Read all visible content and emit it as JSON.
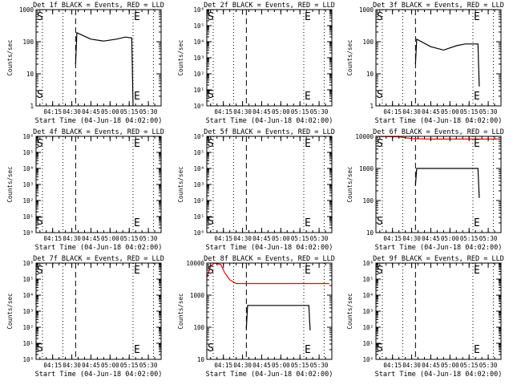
{
  "x_ticks": [
    "04:15",
    "04:30",
    "04:45",
    "05:00",
    "05:15",
    "05:30"
  ],
  "chart_data": [
    {
      "type": "line",
      "title": "Det 1f BLACK = Events, RED = LLD",
      "xlabel": "Start Time (04-Jun-18 04:02:00)",
      "ylabel": "Counts/sec",
      "yscale": "log",
      "ylim": [
        1,
        1000
      ],
      "ytick_labels": [
        "1",
        "10",
        "100",
        "1000"
      ],
      "dotted_x": [
        "04:07",
        "04:23",
        "05:18",
        "05:34"
      ],
      "dashed_x": [
        "04:33"
      ],
      "markers": [
        {
          "text": "S",
          "x": "04:02"
        },
        {
          "text": "E",
          "x": "05:18"
        }
      ],
      "series": [
        {
          "color": "#000000",
          "points": [
            [
              "04:33",
              20
            ],
            [
              "04:34",
              190
            ],
            [
              "04:45",
              120
            ],
            [
              "04:55",
              105
            ],
            [
              "05:05",
              120
            ],
            [
              "05:12",
              140
            ],
            [
              "05:17",
              130
            ],
            [
              "05:18",
              1
            ]
          ]
        }
      ]
    },
    {
      "type": "line",
      "title": "Det 2f BLACK = Events, RED = LLD",
      "xlabel": "Start Time (04-Jun-18 04:02:00)",
      "ylabel": "Counts/sec",
      "yscale": "log",
      "ylim": [
        1,
        1000000
      ],
      "ytick_labels": [
        "10⁰",
        "10¹",
        "10²",
        "10³",
        "10⁴",
        "10⁵",
        "10⁶"
      ],
      "dotted_x": [
        "04:07",
        "04:23",
        "05:18",
        "05:34"
      ],
      "dashed_x": [
        "04:33"
      ],
      "markers": [
        {
          "text": "S",
          "x": "04:02"
        },
        {
          "text": "E",
          "x": "05:18"
        }
      ],
      "series": []
    },
    {
      "type": "line",
      "title": "Det 3f BLACK = Events, RED = LLD",
      "xlabel": "Start Time (04-Jun-18 04:02:00)",
      "ylabel": "Counts/sec",
      "yscale": "log",
      "ylim": [
        1,
        1000
      ],
      "ytick_labels": [
        "1",
        "10",
        "100",
        "1000"
      ],
      "dotted_x": [
        "04:07",
        "04:23",
        "05:18",
        "05:34"
      ],
      "dashed_x": [
        "04:33"
      ],
      "markers": [
        {
          "text": "S",
          "x": "04:02"
        },
        {
          "text": "E",
          "x": "05:18"
        }
      ],
      "series": [
        {
          "color": "#000000",
          "points": [
            [
              "04:33",
              20
            ],
            [
              "04:34",
              120
            ],
            [
              "04:45",
              70
            ],
            [
              "04:55",
              55
            ],
            [
              "05:05",
              75
            ],
            [
              "05:12",
              85
            ],
            [
              "05:22",
              85
            ],
            [
              "05:23",
              4
            ]
          ]
        }
      ]
    },
    {
      "type": "line",
      "title": "Det 4f BLACK = Events, RED = LLD",
      "xlabel": "Start Time (04-Jun-18 04:02:00)",
      "ylabel": "Counts/sec",
      "yscale": "log",
      "ylim": [
        1,
        1000000
      ],
      "ytick_labels": [
        "10⁰",
        "10¹",
        "10²",
        "10³",
        "10⁴",
        "10⁵",
        "10⁶"
      ],
      "dotted_x": [
        "04:07",
        "04:23",
        "05:18",
        "05:34"
      ],
      "dashed_x": [
        "04:33"
      ],
      "markers": [
        {
          "text": "S",
          "x": "04:02"
        },
        {
          "text": "E",
          "x": "05:18"
        }
      ],
      "series": []
    },
    {
      "type": "line",
      "title": "Det 5f BLACK = Events, RED = LLD",
      "xlabel": "Start Time (04-Jun-18 04:02:00)",
      "ylabel": "Counts/sec",
      "yscale": "log",
      "ylim": [
        1,
        1000000
      ],
      "ytick_labels": [
        "10⁰",
        "10¹",
        "10²",
        "10³",
        "10⁴",
        "10⁵",
        "10⁶"
      ],
      "dotted_x": [
        "04:07",
        "04:23",
        "05:18",
        "05:34"
      ],
      "dashed_x": [
        "04:33"
      ],
      "markers": [
        {
          "text": "S",
          "x": "04:02"
        },
        {
          "text": "E",
          "x": "05:18"
        }
      ],
      "series": []
    },
    {
      "type": "line",
      "title": "Det 6f BLACK = Events, RED = LLD",
      "xlabel": "Start Time (04-Jun-18 04:02:00)",
      "ylabel": "Counts/sec",
      "yscale": "log",
      "ylim": [
        10,
        10000
      ],
      "ytick_labels": [
        "10",
        "100",
        "1000",
        "10000"
      ],
      "dotted_x": [
        "04:07",
        "04:23",
        "05:18",
        "05:34"
      ],
      "dashed_x": [
        "04:33"
      ],
      "markers": [
        {
          "text": "S",
          "x": "04:02"
        },
        {
          "text": "E",
          "x": "05:18"
        }
      ],
      "series": [
        {
          "color": "#ff0000",
          "points": [
            [
              "04:02",
              10000
            ],
            [
              "04:20",
              9600
            ],
            [
              "04:30",
              8500
            ],
            [
              "04:45",
              8200
            ],
            [
              "05:10",
              8200
            ],
            [
              "05:38",
              8200
            ]
          ]
        },
        {
          "color": "#000000",
          "points": [
            [
              "04:33",
              300
            ],
            [
              "04:34",
              1000
            ],
            [
              "05:00",
              1000
            ],
            [
              "05:22",
              1000
            ],
            [
              "05:23",
              120
            ]
          ]
        }
      ]
    },
    {
      "type": "line",
      "title": "Det 7f BLACK = Events, RED = LLD",
      "xlabel": "Start Time (04-Jun-18 04:02:00)",
      "ylabel": "Counts/sec",
      "yscale": "log",
      "ylim": [
        1,
        1000000
      ],
      "ytick_labels": [
        "10⁰",
        "10¹",
        "10²",
        "10³",
        "10⁴",
        "10⁵",
        "10⁶"
      ],
      "dotted_x": [
        "04:07",
        "04:23",
        "05:18",
        "05:34"
      ],
      "dashed_x": [
        "04:33"
      ],
      "markers": [
        {
          "text": "S",
          "x": "04:02"
        },
        {
          "text": "E",
          "x": "05:18"
        }
      ],
      "series": []
    },
    {
      "type": "line",
      "title": "Det 8f BLACK = Events, RED = LLD",
      "xlabel": "Start Time (04-Jun-18 04:02:00)",
      "ylabel": "Counts/sec",
      "yscale": "log",
      "ylim": [
        10,
        10000
      ],
      "ytick_labels": [
        "10",
        "100",
        "1000",
        "10000"
      ],
      "dotted_x": [
        "04:07",
        "04:23",
        "05:18",
        "05:34"
      ],
      "dashed_x": [
        "04:33"
      ],
      "markers": [
        {
          "text": "S",
          "x": "04:02"
        },
        {
          "text": "E",
          "x": "05:18"
        }
      ],
      "series": [
        {
          "color": "#ff0000",
          "points": [
            [
              "04:02",
              3500
            ],
            [
              "04:05",
              8000
            ],
            [
              "04:08",
              10000
            ],
            [
              "04:13",
              9000
            ],
            [
              "04:16",
              5000
            ],
            [
              "04:20",
              3000
            ],
            [
              "04:25",
              2300
            ],
            [
              "04:40",
              2300
            ],
            [
              "05:38",
              2300
            ]
          ]
        },
        {
          "color": "#000000",
          "points": [
            [
              "04:33",
              90
            ],
            [
              "04:34",
              480
            ],
            [
              "05:00",
              480
            ],
            [
              "05:22",
              480
            ],
            [
              "05:23",
              80
            ]
          ]
        }
      ]
    },
    {
      "type": "line",
      "title": "Det 9f BLACK = Events, RED = LLD",
      "xlabel": "Start Time (04-Jun-18 04:02:00)",
      "ylabel": "Counts/sec",
      "yscale": "log",
      "ylim": [
        1,
        1000000
      ],
      "ytick_labels": [
        "10⁰",
        "10¹",
        "10²",
        "10³",
        "10⁴",
        "10⁵",
        "10⁶"
      ],
      "dotted_x": [
        "04:07",
        "04:23",
        "05:18",
        "05:34"
      ],
      "dashed_x": [
        "04:33"
      ],
      "markers": [
        {
          "text": "S",
          "x": "04:02"
        },
        {
          "text": "E",
          "x": "05:18"
        }
      ],
      "series": []
    }
  ]
}
